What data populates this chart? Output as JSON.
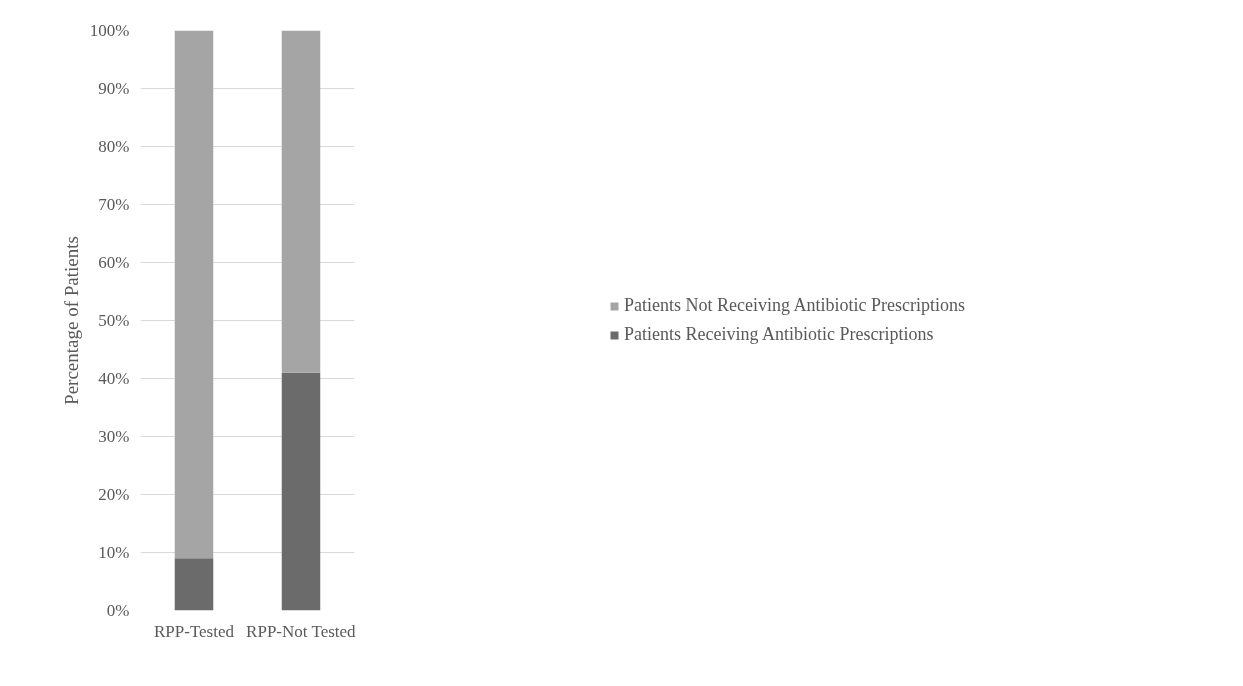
{
  "chart_data": {
    "type": "bar",
    "stacked": true,
    "ylabel": "Percentage of Patients",
    "categories": [
      "RPP-Tested",
      "RPP-Not Tested"
    ],
    "series": [
      {
        "name": "Patients Receiving Antibiotic Prescriptions",
        "color": "#6b6b6b",
        "values": [
          9,
          41
        ]
      },
      {
        "name": "Patients Not Receiving Antibiotic Prescriptions",
        "color": "#a5a5a5",
        "values": [
          91,
          59
        ]
      }
    ],
    "ylim": [
      0,
      100
    ],
    "yticks": [
      {
        "value": 0,
        "label": "0%"
      },
      {
        "value": 10,
        "label": "10%"
      },
      {
        "value": 20,
        "label": "20%"
      },
      {
        "value": 30,
        "label": "30%"
      },
      {
        "value": 40,
        "label": "40%"
      },
      {
        "value": 50,
        "label": "50%"
      },
      {
        "value": 60,
        "label": "60%"
      },
      {
        "value": 70,
        "label": "70%"
      },
      {
        "value": 80,
        "label": "80%"
      },
      {
        "value": 90,
        "label": "90%"
      },
      {
        "value": 100,
        "label": "100%"
      }
    ],
    "grid": "y",
    "legend": "right"
  }
}
